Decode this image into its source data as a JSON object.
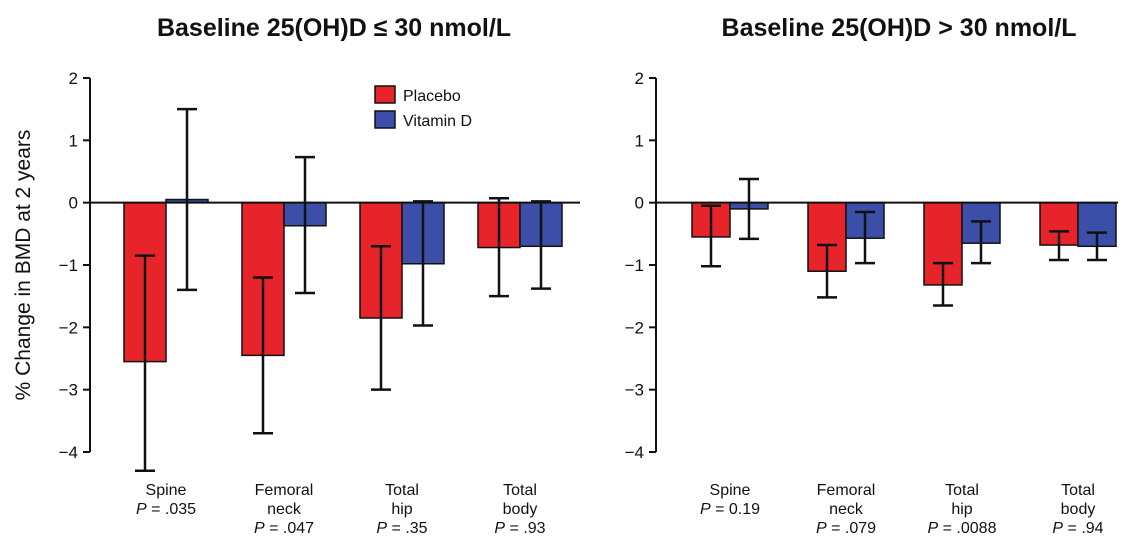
{
  "ylabel": "% Change in BMD at 2 years",
  "legend": [
    {
      "name": "Placebo",
      "color": "#e8242b"
    },
    {
      "name": "Vitamin D",
      "color": "#3b4fa8"
    }
  ],
  "chart_data": [
    {
      "type": "bar",
      "title": "Baseline 25(OH)D ≤ 30 nmol/L",
      "ylim": [
        -4,
        2
      ],
      "yticks": [
        "2",
        "1",
        "0",
        "−1",
        "−2",
        "−3",
        "−4"
      ],
      "categories": [
        {
          "lines": [
            "Spine"
          ],
          "p_label": "P",
          "p_value": " = .035"
        },
        {
          "lines": [
            "Femoral",
            "neck"
          ],
          "p_label": "P",
          "p_value": " = .047"
        },
        {
          "lines": [
            "Total",
            "hip"
          ],
          "p_label": "P",
          "p_value": " = .35"
        },
        {
          "lines": [
            "Total",
            "body"
          ],
          "p_label": "P",
          "p_value": " = .93"
        }
      ],
      "series": [
        {
          "name": "Placebo",
          "values": [
            -2.55,
            -2.45,
            -1.85,
            -0.72
          ],
          "err_low": [
            -4.3,
            -3.7,
            -3.0,
            -1.5
          ],
          "err_high": [
            -0.85,
            -1.2,
            -0.7,
            0.07
          ]
        },
        {
          "name": "Vitamin D",
          "values": [
            0.05,
            -0.37,
            -0.98,
            -0.7
          ],
          "err_low": [
            -1.4,
            -1.45,
            -1.97,
            -1.38
          ],
          "err_high": [
            1.5,
            0.73,
            0.02,
            0.02
          ]
        }
      ]
    },
    {
      "type": "bar",
      "title": "Baseline 25(OH)D > 30 nmol/L",
      "ylim": [
        -4,
        2
      ],
      "yticks": [
        "2",
        "1",
        "0",
        "−1",
        "−2",
        "−3",
        "−4"
      ],
      "categories": [
        {
          "lines": [
            "Spine"
          ],
          "p_label": "P",
          "p_value": " = 0.19"
        },
        {
          "lines": [
            "Femoral",
            "neck"
          ],
          "p_label": "P",
          "p_value": " = .079"
        },
        {
          "lines": [
            "Total",
            "hip"
          ],
          "p_label": "P",
          "p_value": " = .0088"
        },
        {
          "lines": [
            "Total",
            "body"
          ],
          "p_label": "P",
          "p_value": " = .94"
        }
      ],
      "series": [
        {
          "name": "Placebo",
          "values": [
            -0.55,
            -1.1,
            -1.32,
            -0.68
          ],
          "err_low": [
            -1.02,
            -1.52,
            -1.65,
            -0.92
          ],
          "err_high": [
            -0.05,
            -0.68,
            -0.97,
            -0.46
          ]
        },
        {
          "name": "Vitamin D",
          "values": [
            -0.1,
            -0.57,
            -0.65,
            -0.7
          ],
          "err_low": [
            -0.58,
            -0.97,
            -0.97,
            -0.92
          ],
          "err_high": [
            0.38,
            -0.15,
            -0.3,
            -0.48
          ]
        }
      ]
    }
  ]
}
